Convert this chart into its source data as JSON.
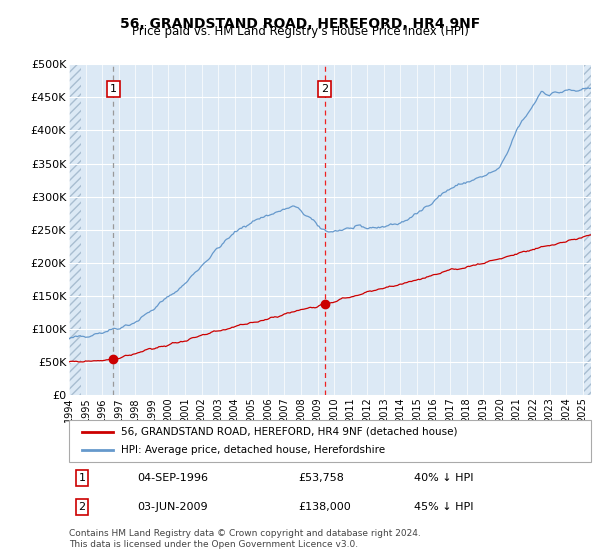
{
  "title": "56, GRANDSTAND ROAD, HEREFORD, HR4 9NF",
  "subtitle": "Price paid vs. HM Land Registry's House Price Index (HPI)",
  "plot_bg_color": "#dce9f5",
  "grid_color": "#ffffff",
  "red_line_color": "#cc0000",
  "blue_line_color": "#6699cc",
  "marker_color": "#cc0000",
  "ylim": [
    0,
    500000
  ],
  "ytick_labels": [
    "£0",
    "£50K",
    "£100K",
    "£150K",
    "£200K",
    "£250K",
    "£300K",
    "£350K",
    "£400K",
    "£450K",
    "£500K"
  ],
  "ytick_values": [
    0,
    50000,
    100000,
    150000,
    200000,
    250000,
    300000,
    350000,
    400000,
    450000,
    500000
  ],
  "sale1_date": 1996.67,
  "sale1_price": 53758,
  "sale2_date": 2009.42,
  "sale2_price": 138000,
  "legend_line1": "56, GRANDSTAND ROAD, HEREFORD, HR4 9NF (detached house)",
  "legend_line2": "HPI: Average price, detached house, Herefordshire",
  "annotation1_date": "04-SEP-1996",
  "annotation1_price": "£53,758",
  "annotation1_hpi": "40% ↓ HPI",
  "annotation2_date": "03-JUN-2009",
  "annotation2_price": "£138,000",
  "annotation2_hpi": "45% ↓ HPI",
  "footnote": "Contains HM Land Registry data © Crown copyright and database right 2024.\nThis data is licensed under the Open Government Licence v3.0.",
  "xmin": 1994.0,
  "xmax": 2025.5,
  "hpi_key_years": [
    1994,
    1995,
    1996,
    1997,
    1998,
    1999,
    2000,
    2001,
    2002,
    2003,
    2004,
    2005,
    2006,
    2007,
    2007.5,
    2008,
    2008.5,
    2009,
    2009.5,
    2010,
    2010.5,
    2011,
    2012,
    2013,
    2014,
    2015,
    2016,
    2017,
    2018,
    2019,
    2020,
    2020.5,
    2021,
    2022,
    2022.5,
    2023,
    2024,
    2025,
    2025.5
  ],
  "hpi_key_vals": [
    84000,
    90000,
    95000,
    102000,
    110000,
    128000,
    148000,
    168000,
    196000,
    222000,
    245000,
    262000,
    272000,
    280000,
    285000,
    278000,
    268000,
    255000,
    248000,
    248000,
    250000,
    252000,
    252000,
    255000,
    260000,
    273000,
    295000,
    312000,
    322000,
    330000,
    342000,
    368000,
    400000,
    438000,
    460000,
    455000,
    460000,
    460000,
    462000
  ],
  "prop_key_years": [
    1994,
    1996.67,
    2009.42,
    2025.5
  ],
  "prop_key_vals": [
    49000,
    53758,
    138000,
    242000
  ]
}
